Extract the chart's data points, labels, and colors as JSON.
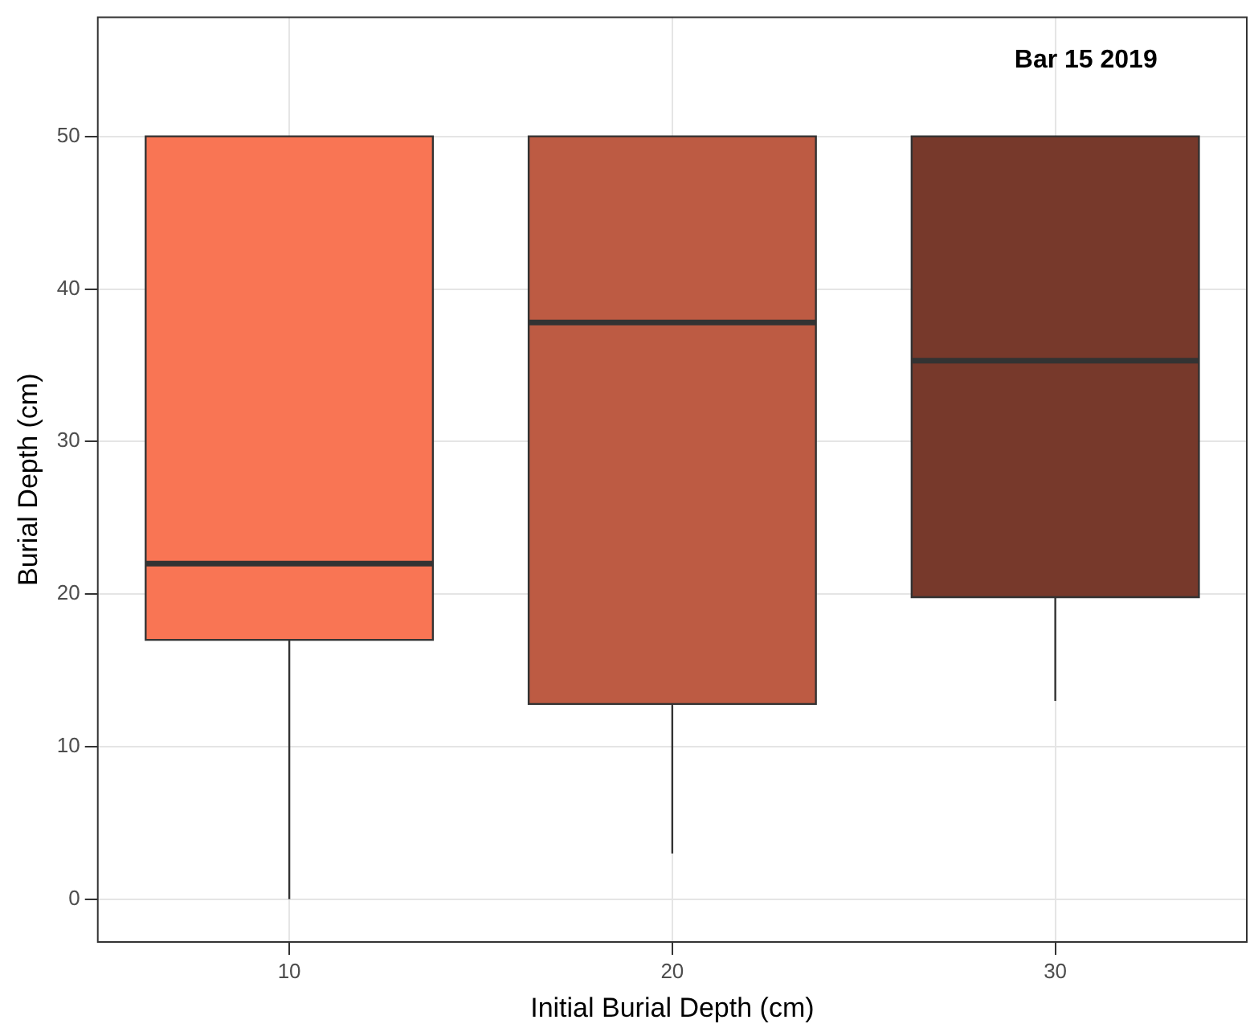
{
  "chart_data": {
    "type": "box",
    "title": "Bar 15 2019",
    "xlabel": "Initial Burial Depth (cm)",
    "ylabel": "Burial Depth (cm)",
    "categories": [
      "10",
      "20",
      "30"
    ],
    "colors": [
      "#f97554",
      "#bd5b43",
      "#77392b"
    ],
    "boxes": [
      {
        "low": 0,
        "q1": 17,
        "median": 22,
        "q3": 50,
        "high": 50
      },
      {
        "low": 3,
        "q1": 12.8,
        "median": 37.8,
        "q3": 50,
        "high": 50
      },
      {
        "low": 13,
        "q1": 19.8,
        "median": 35.3,
        "q3": 50,
        "high": 50
      }
    ],
    "ylim": [
      -2.8,
      57.8
    ],
    "yticks": [
      0,
      10,
      20,
      30,
      40,
      50
    ],
    "grid": true
  }
}
